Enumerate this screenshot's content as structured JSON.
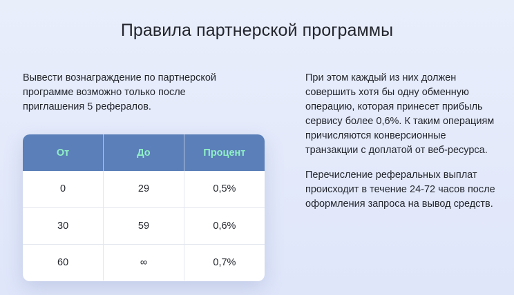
{
  "page": {
    "title": "Правила партнерской программы"
  },
  "left": {
    "text": "Вывести вознаграждение по партнерской программе возможно только после приглашения 5 рефералов."
  },
  "right": {
    "paragraphs": [
      "При этом каждый из них должен совершить хотя бы одну обменную операцию, которая принесет прибыль сервису более 0,6%. К таким операциям причисляются конверсионные транзакции с доплатой от веб-ресурса.",
      "Перечисление реферальных выплат происходит в течение 24-72 часов после оформления запроса на вывод средств."
    ]
  },
  "table": {
    "headers": [
      "От",
      "До",
      "Процент"
    ],
    "rows": [
      [
        "0",
        "29",
        "0,5%"
      ],
      [
        "30",
        "59",
        "0,6%"
      ],
      [
        "60",
        "∞",
        "0,7%"
      ]
    ]
  },
  "colors": {
    "header_bg": "#5b7fb8",
    "header_text": "#8ff0c6",
    "page_bg": "#e5ebfa"
  }
}
